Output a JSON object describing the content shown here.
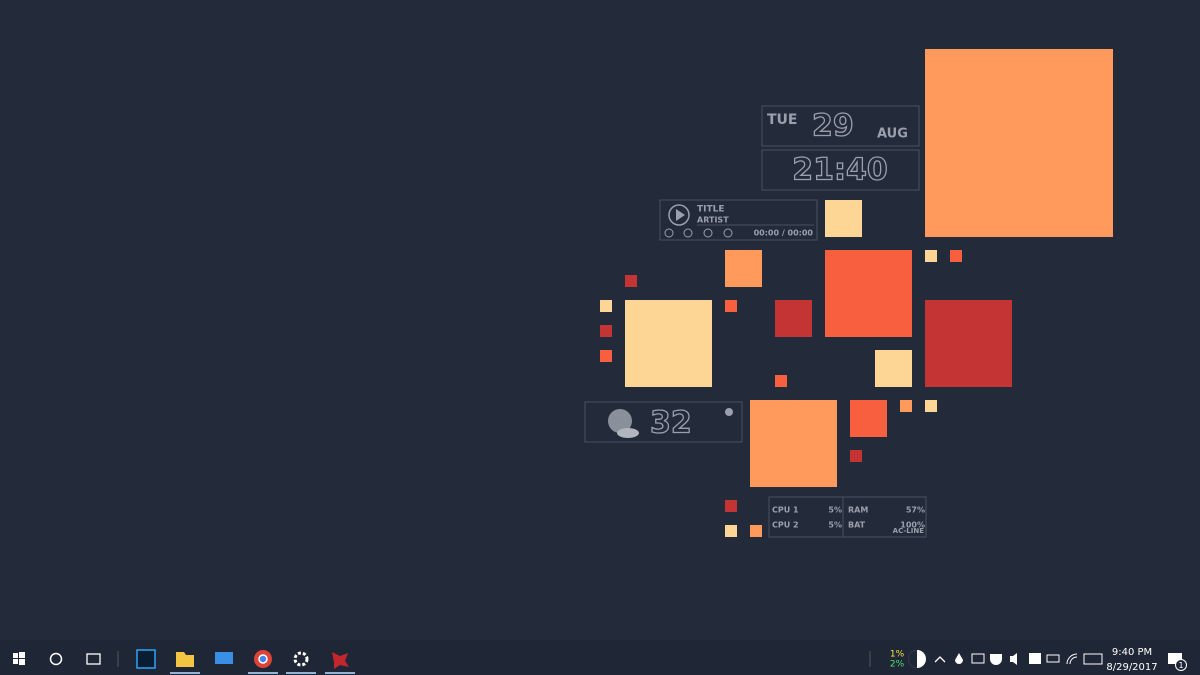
{
  "widgets": {
    "date": {
      "weekday": "TUE",
      "day": "29",
      "month": "AUG"
    },
    "clock": {
      "time": "21:40"
    },
    "media": {
      "title": "TITLE",
      "artist": "ARTIST",
      "position": "00:00 / 00:00"
    },
    "weather": {
      "temperature": "32"
    },
    "system": {
      "rows": [
        [
          "CPU 1",
          "5%",
          "RAM",
          "57%"
        ],
        [
          "CPU 2",
          "5%",
          "BAT",
          "100%"
        ]
      ],
      "power": "AC-LINE"
    }
  },
  "taskbar": {
    "tray_top": "1%",
    "tray_bottom": "2%",
    "time": "9:40 PM",
    "date": "8/29/2017",
    "notifications": "1"
  }
}
